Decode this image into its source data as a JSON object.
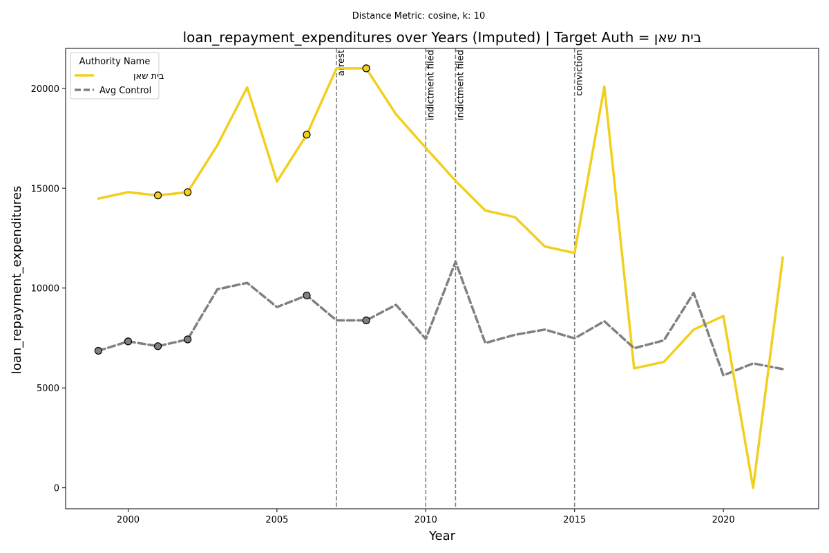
{
  "chart_data": {
    "type": "line",
    "suptitle": "Distance Metric: cosine, k: 10",
    "title": "loan_repayment_expenditures over Years (Imputed) | Target Auth = בית שאן",
    "xlabel": "Year",
    "ylabel": "loan_repayment_expenditures",
    "xlim": [
      1997.9,
      2023.2
    ],
    "ylim": [
      -1050,
      22000
    ],
    "xticks": [
      2000,
      2005,
      2010,
      2015,
      2020
    ],
    "yticks": [
      0,
      5000,
      10000,
      15000,
      20000
    ],
    "grid": false,
    "legend": {
      "title": "Authority Name",
      "placement": "top-left"
    },
    "x": [
      1999,
      2000,
      2001,
      2002,
      2003,
      2004,
      2005,
      2006,
      2007,
      2008,
      2009,
      2010,
      2011,
      2012,
      2013,
      2014,
      2015,
      2016,
      2017,
      2018,
      2019,
      2020,
      2021,
      2022
    ],
    "series": [
      {
        "name": "בית שאן",
        "color": "#f2cf1d",
        "style": "solid",
        "values": [
          14480,
          14800,
          14640,
          14800,
          17150,
          20050,
          15330,
          17680,
          21000,
          21000,
          18700,
          17020,
          15370,
          13880,
          13550,
          12080,
          11760,
          20090,
          5980,
          6300,
          7920,
          8600,
          null,
          11580
        ],
        "markers_x": [
          2001,
          2002,
          2006,
          2008
        ],
        "markers_y": [
          14640,
          14800,
          17680,
          21000
        ]
      },
      {
        "name": "Avg Control",
        "color": "#808080",
        "style": "dashed",
        "values": [
          6860,
          7330,
          7090,
          7430,
          9940,
          10260,
          9050,
          9630,
          8380,
          8380,
          9160,
          7450,
          11320,
          7250,
          7660,
          7920,
          7480,
          8340,
          6990,
          7380,
          9760,
          5630,
          6230,
          5940
        ],
        "markers_x": [
          1999,
          2000,
          2001,
          2002,
          2006,
          2008
        ],
        "markers_y": [
          6860,
          7330,
          7090,
          7430,
          9630,
          8380
        ]
      }
    ],
    "target_gap_to_2021": {
      "x": [
        2020,
        2021,
        2022
      ],
      "values": [
        8600,
        0,
        11580
      ]
    },
    "events": [
      {
        "x": 2007,
        "label": "arrest"
      },
      {
        "x": 2010,
        "label": "indictment filed"
      },
      {
        "x": 2011,
        "label": "indictment filed"
      },
      {
        "x": 2015,
        "label": "conviction"
      }
    ]
  }
}
